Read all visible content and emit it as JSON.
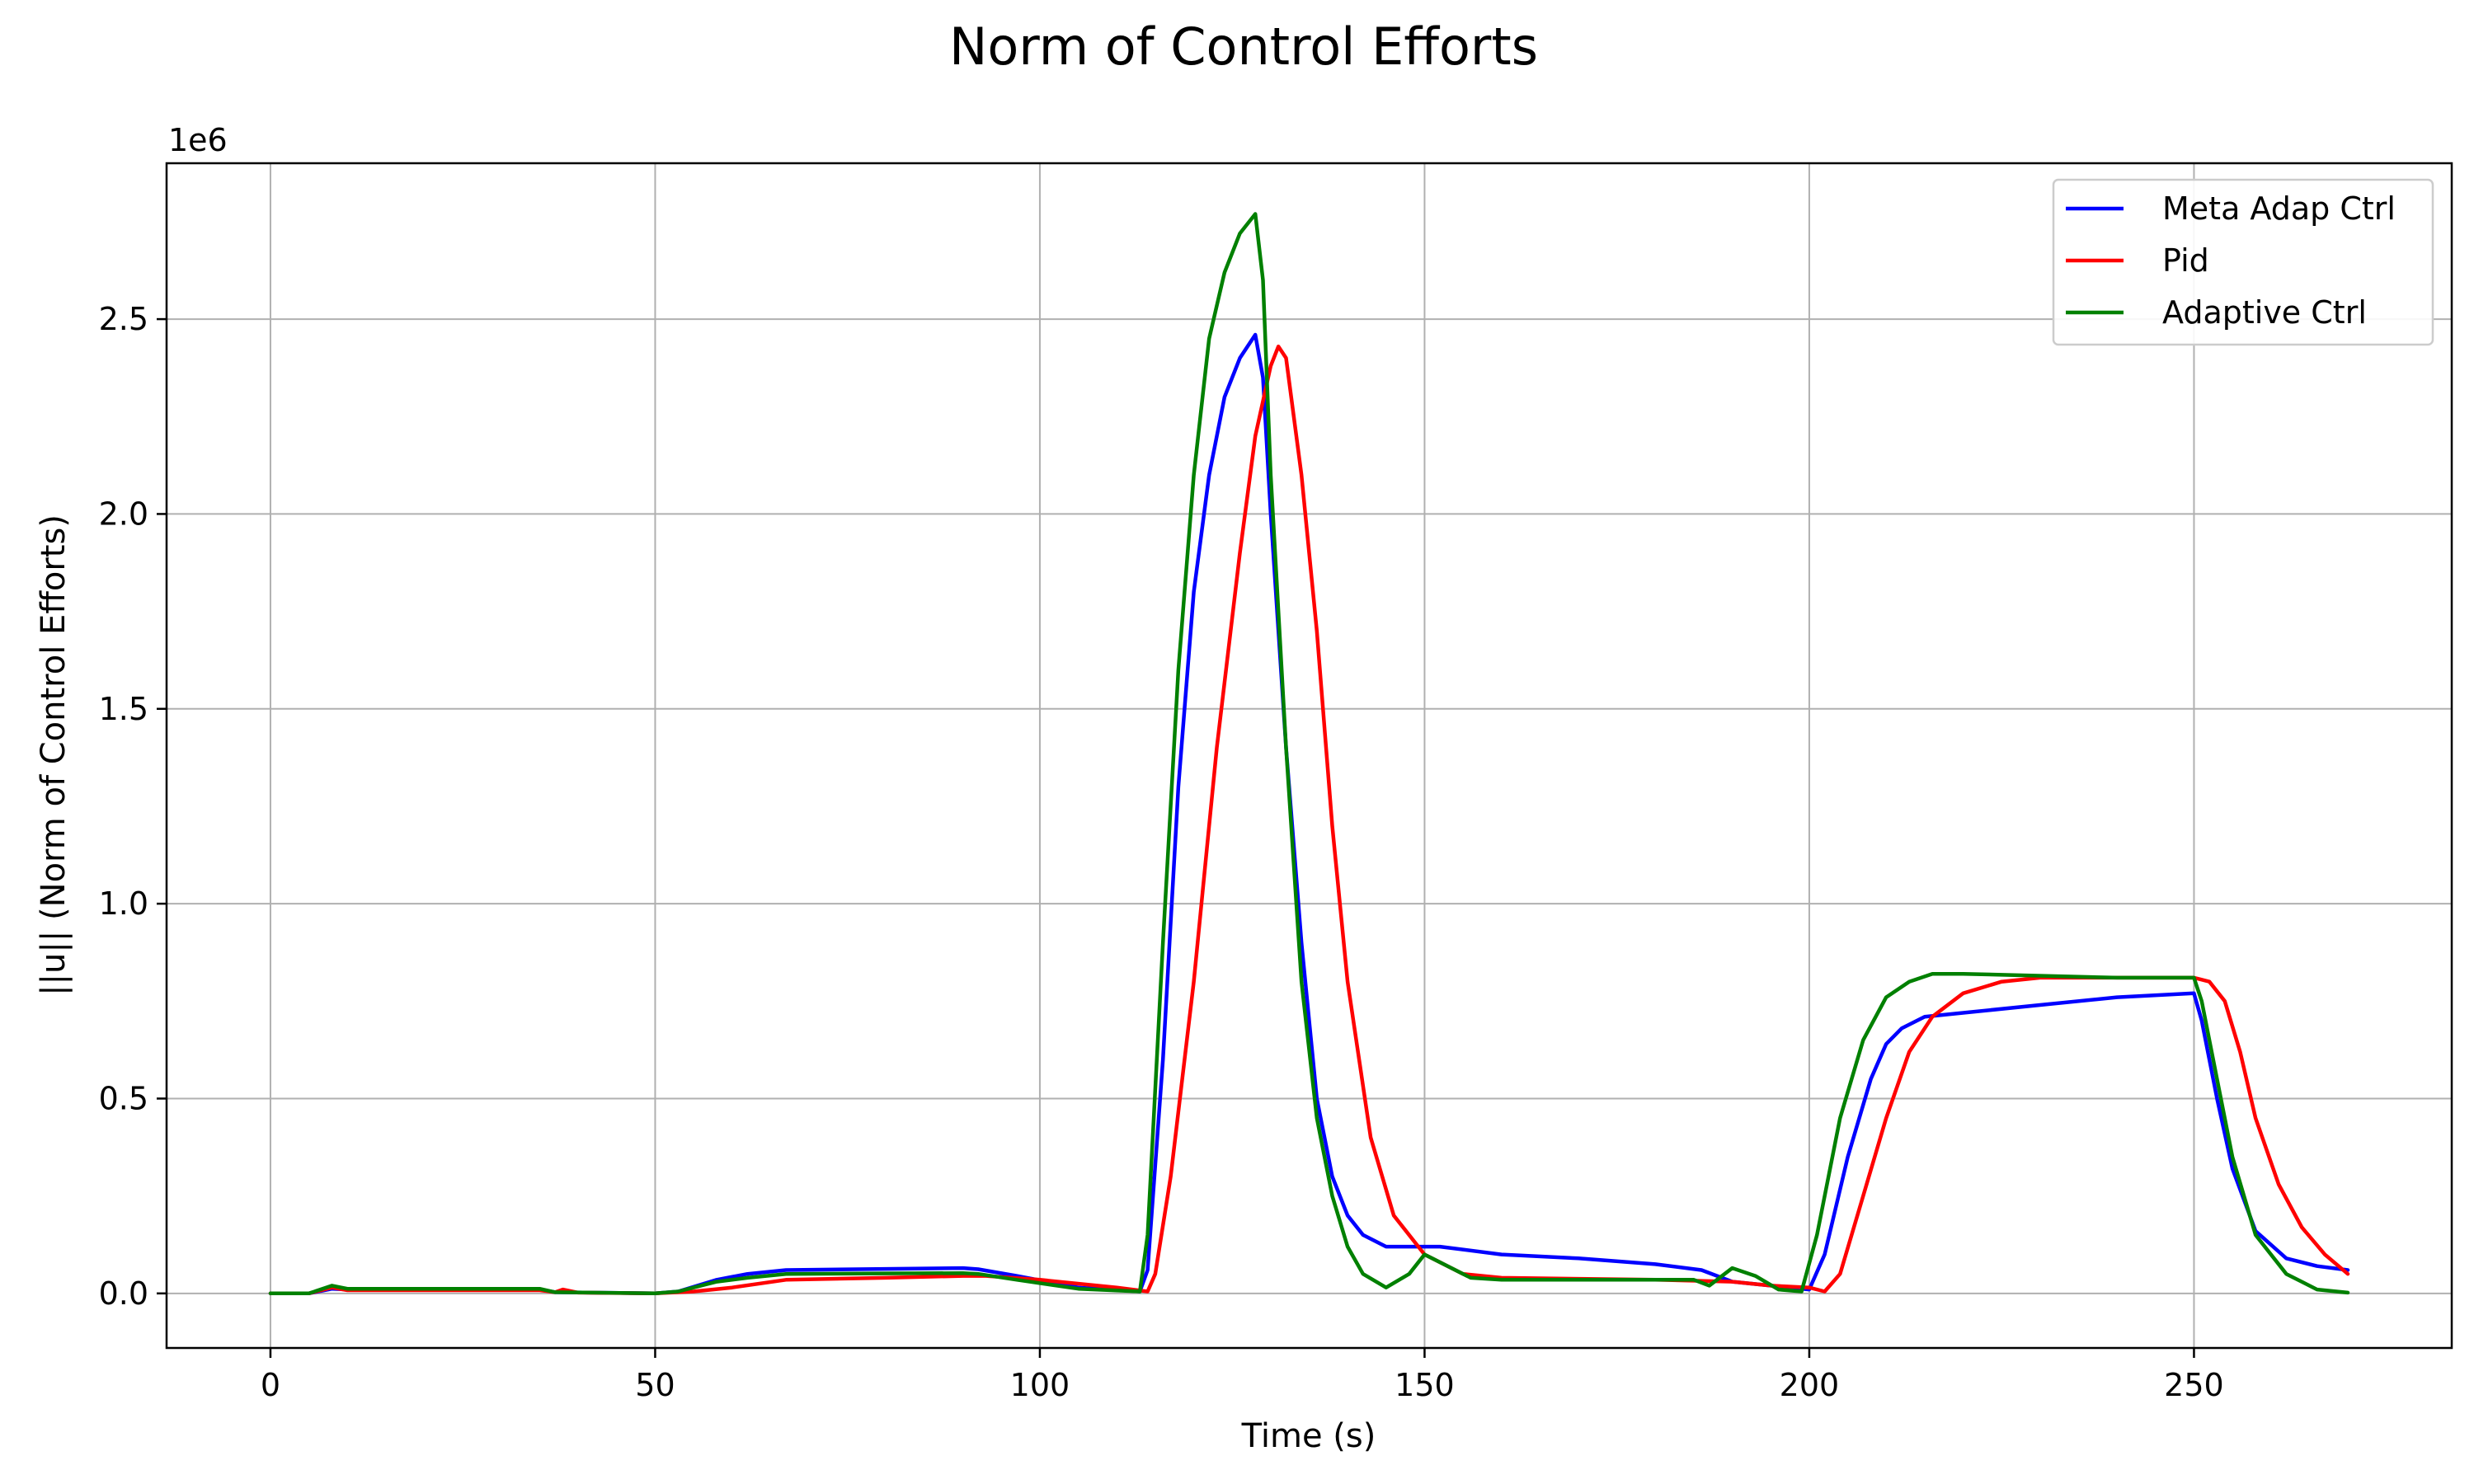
{
  "chart_data": {
    "type": "line",
    "title": "Norm of Control Efforts",
    "xlabel": "Time (s)",
    "ylabel": "||u|| (Norm of Control Efforts)",
    "y_offset_label": "1e6",
    "xlim": [
      -13.5,
      283.5
    ],
    "ylim": [
      -0.14,
      2.9
    ],
    "x_ticks": [
      0,
      50,
      100,
      150,
      200,
      250
    ],
    "x_tick_labels": [
      "0",
      "50",
      "100",
      "150",
      "200",
      "250"
    ],
    "y_ticks": [
      0,
      0.5,
      1.0,
      1.5,
      2.0,
      2.5
    ],
    "y_tick_labels": [
      "0.0",
      "0.5",
      "1.0",
      "1.5",
      "2.0",
      "2.5"
    ],
    "grid": true,
    "legend_position": "top-right",
    "series": [
      {
        "name": "Meta Adap Ctrl",
        "color": "#0000ff",
        "points": [
          [
            0,
            0
          ],
          [
            5,
            0
          ],
          [
            8,
            0.012
          ],
          [
            10,
            0.01
          ],
          [
            35,
            0.01
          ],
          [
            37,
            0.003
          ],
          [
            50,
            0
          ],
          [
            53,
            0.005
          ],
          [
            58,
            0.035
          ],
          [
            62,
            0.05
          ],
          [
            67,
            0.06
          ],
          [
            90,
            0.065
          ],
          [
            92,
            0.062
          ],
          [
            97,
            0.045
          ],
          [
            105,
            0.015
          ],
          [
            113,
            0.005
          ],
          [
            114,
            0.06
          ],
          [
            116,
            0.6
          ],
          [
            118,
            1.3
          ],
          [
            120,
            1.8
          ],
          [
            122,
            2.1
          ],
          [
            124,
            2.3
          ],
          [
            126,
            2.4
          ],
          [
            128,
            2.46
          ],
          [
            129,
            2.35
          ],
          [
            130,
            2.0
          ],
          [
            132,
            1.4
          ],
          [
            134,
            0.9
          ],
          [
            136,
            0.5
          ],
          [
            138,
            0.3
          ],
          [
            140,
            0.2
          ],
          [
            142,
            0.15
          ],
          [
            145,
            0.12
          ],
          [
            148,
            0.12
          ],
          [
            152,
            0.12
          ],
          [
            160,
            0.1
          ],
          [
            170,
            0.09
          ],
          [
            180,
            0.075
          ],
          [
            186,
            0.06
          ],
          [
            190,
            0.03
          ],
          [
            195,
            0.02
          ],
          [
            200,
            0.01
          ],
          [
            202,
            0.1
          ],
          [
            205,
            0.35
          ],
          [
            208,
            0.55
          ],
          [
            210,
            0.64
          ],
          [
            212,
            0.68
          ],
          [
            215,
            0.71
          ],
          [
            220,
            0.72
          ],
          [
            230,
            0.74
          ],
          [
            240,
            0.76
          ],
          [
            250,
            0.77
          ],
          [
            251,
            0.7
          ],
          [
            253,
            0.5
          ],
          [
            255,
            0.32
          ],
          [
            258,
            0.16
          ],
          [
            262,
            0.09
          ],
          [
            266,
            0.07
          ],
          [
            270,
            0.06
          ]
        ]
      },
      {
        "name": "Pid",
        "color": "#ff0000",
        "points": [
          [
            0,
            0
          ],
          [
            5,
            0
          ],
          [
            8,
            0.015
          ],
          [
            10,
            0.008
          ],
          [
            35,
            0.008
          ],
          [
            37,
            0.003
          ],
          [
            38,
            0.01
          ],
          [
            40,
            0.002
          ],
          [
            50,
            0
          ],
          [
            55,
            0.005
          ],
          [
            60,
            0.015
          ],
          [
            67,
            0.035
          ],
          [
            80,
            0.04
          ],
          [
            90,
            0.045
          ],
          [
            93,
            0.045
          ],
          [
            100,
            0.035
          ],
          [
            110,
            0.015
          ],
          [
            114,
            0.005
          ],
          [
            115,
            0.05
          ],
          [
            117,
            0.3
          ],
          [
            120,
            0.8
          ],
          [
            123,
            1.4
          ],
          [
            126,
            1.9
          ],
          [
            128,
            2.2
          ],
          [
            130,
            2.38
          ],
          [
            131,
            2.43
          ],
          [
            132,
            2.4
          ],
          [
            134,
            2.1
          ],
          [
            136,
            1.7
          ],
          [
            138,
            1.2
          ],
          [
            140,
            0.8
          ],
          [
            143,
            0.4
          ],
          [
            146,
            0.2
          ],
          [
            150,
            0.1
          ],
          [
            155,
            0.05
          ],
          [
            160,
            0.04
          ],
          [
            180,
            0.035
          ],
          [
            190,
            0.03
          ],
          [
            195,
            0.02
          ],
          [
            200,
            0.015
          ],
          [
            202,
            0.005
          ],
          [
            204,
            0.05
          ],
          [
            207,
            0.25
          ],
          [
            210,
            0.45
          ],
          [
            213,
            0.62
          ],
          [
            216,
            0.71
          ],
          [
            220,
            0.77
          ],
          [
            225,
            0.8
          ],
          [
            230,
            0.81
          ],
          [
            250,
            0.81
          ],
          [
            252,
            0.8
          ],
          [
            254,
            0.75
          ],
          [
            256,
            0.62
          ],
          [
            258,
            0.45
          ],
          [
            261,
            0.28
          ],
          [
            264,
            0.17
          ],
          [
            267,
            0.1
          ],
          [
            270,
            0.05
          ]
        ]
      },
      {
        "name": "Adaptive Ctrl",
        "color": "#008000",
        "points": [
          [
            0,
            0
          ],
          [
            5,
            0
          ],
          [
            8,
            0.02
          ],
          [
            10,
            0.012
          ],
          [
            35,
            0.012
          ],
          [
            37,
            0.003
          ],
          [
            50,
            0
          ],
          [
            53,
            0.005
          ],
          [
            58,
            0.03
          ],
          [
            62,
            0.04
          ],
          [
            67,
            0.05
          ],
          [
            90,
            0.052
          ],
          [
            92,
            0.05
          ],
          [
            97,
            0.035
          ],
          [
            105,
            0.012
          ],
          [
            113,
            0.005
          ],
          [
            114,
            0.15
          ],
          [
            116,
            0.9
          ],
          [
            118,
            1.6
          ],
          [
            120,
            2.1
          ],
          [
            122,
            2.45
          ],
          [
            124,
            2.62
          ],
          [
            126,
            2.72
          ],
          [
            128,
            2.77
          ],
          [
            129,
            2.6
          ],
          [
            130,
            2.1
          ],
          [
            132,
            1.4
          ],
          [
            134,
            0.8
          ],
          [
            136,
            0.45
          ],
          [
            138,
            0.25
          ],
          [
            140,
            0.12
          ],
          [
            142,
            0.05
          ],
          [
            145,
            0.015
          ],
          [
            148,
            0.05
          ],
          [
            150,
            0.1
          ],
          [
            153,
            0.07
          ],
          [
            156,
            0.04
          ],
          [
            160,
            0.035
          ],
          [
            185,
            0.035
          ],
          [
            187,
            0.02
          ],
          [
            190,
            0.065
          ],
          [
            193,
            0.045
          ],
          [
            196,
            0.01
          ],
          [
            199,
            0.005
          ],
          [
            201,
            0.15
          ],
          [
            204,
            0.45
          ],
          [
            207,
            0.65
          ],
          [
            210,
            0.76
          ],
          [
            213,
            0.8
          ],
          [
            216,
            0.82
          ],
          [
            220,
            0.82
          ],
          [
            240,
            0.81
          ],
          [
            250,
            0.81
          ],
          [
            251,
            0.75
          ],
          [
            253,
            0.55
          ],
          [
            255,
            0.35
          ],
          [
            258,
            0.15
          ],
          [
            262,
            0.05
          ],
          [
            266,
            0.01
          ],
          [
            270,
            0.002
          ]
        ]
      }
    ]
  }
}
